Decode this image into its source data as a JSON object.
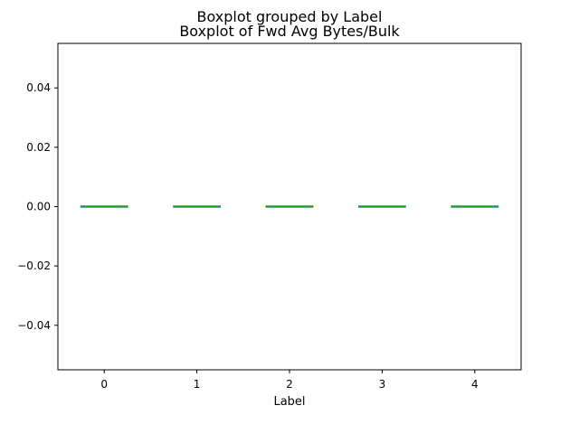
{
  "chart_data": {
    "type": "box",
    "suptitle": "Boxplot grouped by Label",
    "title": "Boxplot of Fwd Avg Bytes/Bulk",
    "xlabel": "Label",
    "ylabel": "",
    "categories": [
      "0",
      "1",
      "2",
      "3",
      "4"
    ],
    "ylim": [
      -0.055,
      0.055
    ],
    "yticks": [
      -0.04,
      -0.02,
      0.0,
      0.02,
      0.04
    ],
    "ytick_labels": [
      "−0.04",
      "−0.02",
      "0.00",
      "0.02",
      "0.04"
    ],
    "boxes": [
      {
        "category": "0",
        "whislo": 0,
        "q1": 0,
        "median": 0,
        "q3": 0,
        "whishi": 0
      },
      {
        "category": "1",
        "whislo": 0,
        "q1": 0,
        "median": 0,
        "q3": 0,
        "whishi": 0
      },
      {
        "category": "2",
        "whislo": 0,
        "q1": 0,
        "median": 0,
        "q3": 0,
        "whishi": 0
      },
      {
        "category": "3",
        "whislo": 0,
        "q1": 0,
        "median": 0,
        "q3": 0,
        "whishi": 0
      },
      {
        "category": "4",
        "whislo": 0,
        "q1": 0,
        "median": 0,
        "q3": 0,
        "whishi": 0
      }
    ],
    "grid": false,
    "colors": {
      "box": "#1f77b4",
      "median": "#2ca02c",
      "whisker": "#1f77b4"
    }
  }
}
